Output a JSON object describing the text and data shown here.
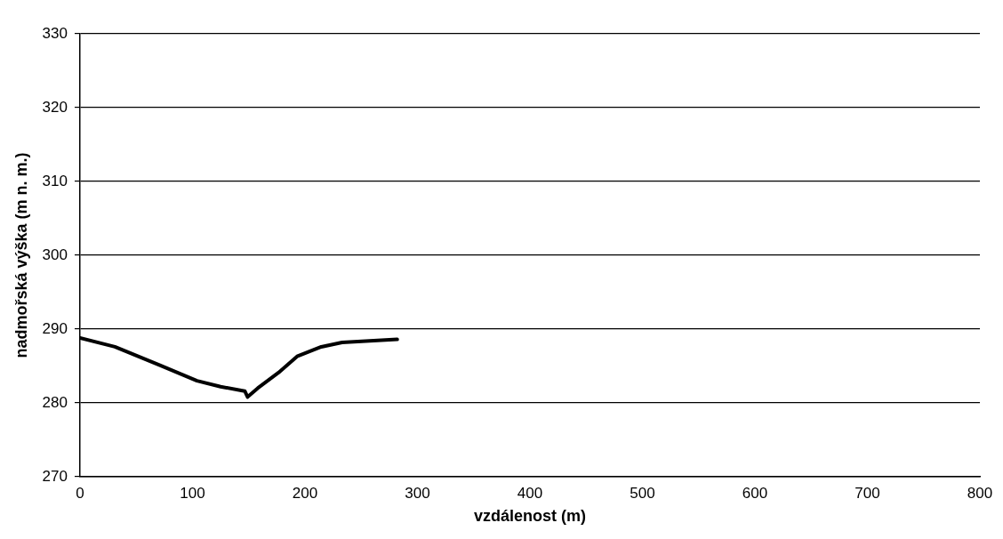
{
  "chart_data": {
    "type": "line",
    "xlabel": "vzdálenost (m)",
    "ylabel": "nadmořská výška (m n. m.)",
    "series": [
      {
        "color": "#000000",
        "x": [
          0,
          31,
          71,
          104,
          125,
          146.5,
          149,
          158,
          176.5,
          193,
          214.5,
          233,
          282
        ],
        "values": [
          288.8,
          287.6,
          285.1,
          283.0,
          282.2,
          281.6,
          280.8,
          282.0,
          284.1,
          286.3,
          287.6,
          288.2,
          288.6
        ]
      }
    ],
    "xlim": [
      0,
      800
    ],
    "xticks": [
      0,
      100,
      200,
      300,
      400,
      500,
      600,
      700,
      800
    ],
    "ylim": [
      270,
      330
    ],
    "yticks": [
      270,
      280,
      290,
      300,
      310,
      320,
      330
    ],
    "grid": "y",
    "legend": false,
    "marker": "none",
    "line_style": "solid"
  }
}
